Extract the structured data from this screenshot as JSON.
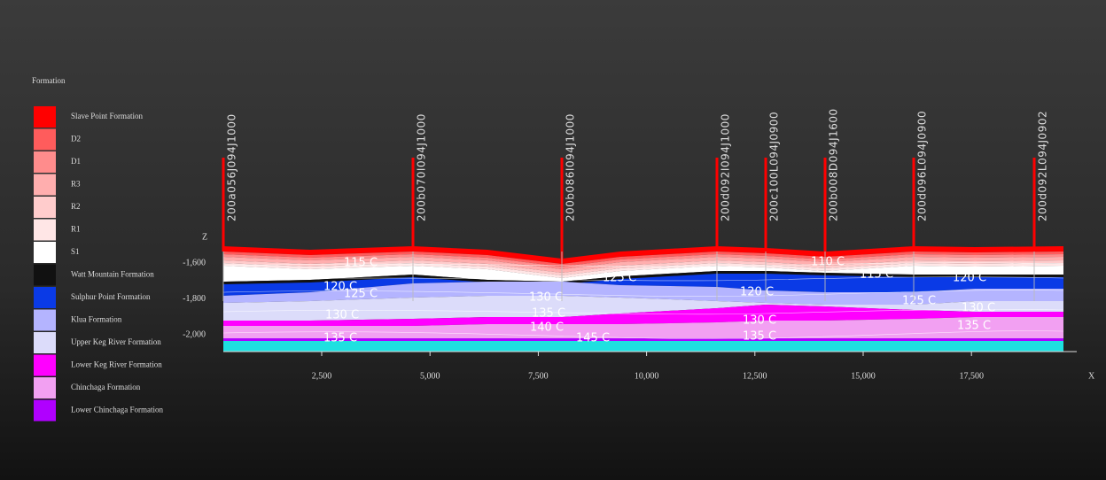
{
  "legend": {
    "title": "Formation",
    "items": [
      {
        "label": "Slave Point Formation",
        "color": "#ff0000"
      },
      {
        "label": "D2",
        "color": "#ff5c5c"
      },
      {
        "label": "D1",
        "color": "#ff8c8c"
      },
      {
        "label": "R3",
        "color": "#ffaeae"
      },
      {
        "label": "R2",
        "color": "#ffcccc"
      },
      {
        "label": "R1",
        "color": "#ffe6e6"
      },
      {
        "label": "S1",
        "color": "#ffffff"
      },
      {
        "label": "Watt Mountain Formation",
        "color": "#111111"
      },
      {
        "label": "Sulphur Point Formation",
        "color": "#0a3ae6"
      },
      {
        "label": "Klua Formation",
        "color": "#b4b4ff"
      },
      {
        "label": "Upper Keg River Formation",
        "color": "#dcdcfa"
      },
      {
        "label": "Lower Keg River Formation",
        "color": "#ff00ff"
      },
      {
        "label": "Chinchaga Formation",
        "color": "#f2a0f2"
      },
      {
        "label": "Lower Chinchaga Formation",
        "color": "#b000ff"
      }
    ]
  },
  "wells": [
    "200a056J094J1000",
    "200b070I094J1000",
    "200b086I094J1000",
    "200d092I094J1000",
    "200c100L094J0900",
    "200b008D094J1600",
    "200d096L094J0900",
    "200d092L094J0902"
  ],
  "axes": {
    "x_label": "X",
    "z_label": "Z",
    "x_ticks": [
      "2,500",
      "5,000",
      "7,500",
      "10,000",
      "12,500",
      "15,000",
      "17,500"
    ],
    "z_ticks": [
      "-1,600",
      "-1,800",
      "-2,000"
    ]
  },
  "contour_labels": [
    "115 C",
    "120 C",
    "125 C",
    "130 C",
    "135 C",
    "125 C",
    "130 C",
    "135 C",
    "140 C",
    "145 C",
    "120 C",
    "130 C",
    "135 C",
    "110 C",
    "115 C",
    "120 C",
    "125 C",
    "130 C",
    "135 C"
  ]
}
